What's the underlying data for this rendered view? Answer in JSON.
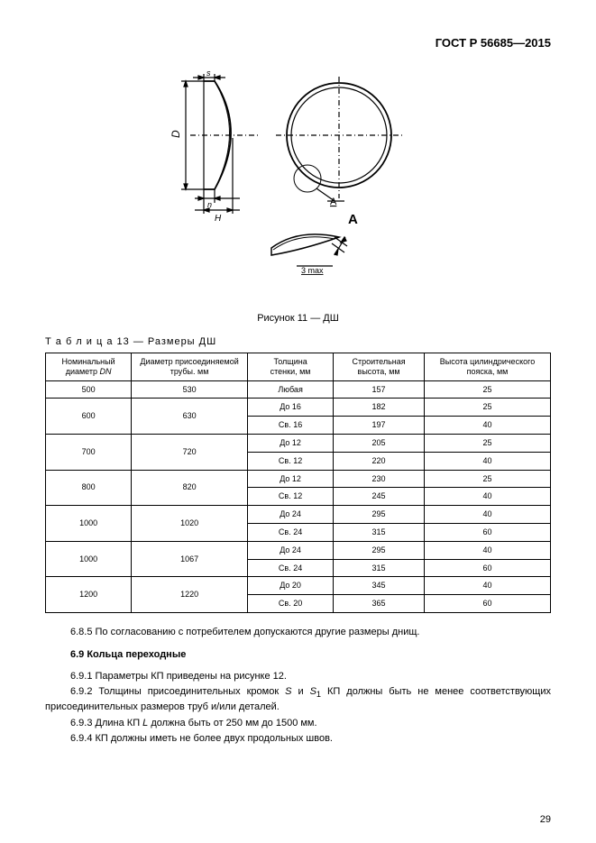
{
  "header": {
    "doc_id": "ГОСТ Р 56685—2015"
  },
  "figure": {
    "caption": "Рисунок 11 — ДШ",
    "labels": {
      "D": "D",
      "s": "s",
      "n": "n",
      "H": "H",
      "A_mark": "A",
      "A_big": "A",
      "bottom_note": "3 max"
    },
    "colors": {
      "stroke": "#000000",
      "fill": "#ffffff"
    }
  },
  "table": {
    "title_prefix": "Т а б л и ц а",
    "title_num": "13 — Размеры ДШ",
    "headers": {
      "c1a": "Номинальный",
      "c1b": "диаметр ",
      "c1c": "DN",
      "c2a": "Диаметр присоединяемой",
      "c2b": "трубы. мм",
      "c3a": "Толщина",
      "c3b": "стенки, мм",
      "c4a": "Строительная",
      "c4b": "высота, мм",
      "c5a": "Высота цилиндрического",
      "c5b": "пояска, мм"
    },
    "rows": [
      {
        "dn": "500",
        "pipe": "530",
        "subrows": [
          {
            "thick": "Любая",
            "height": "157",
            "belt": "25"
          }
        ]
      },
      {
        "dn": "600",
        "pipe": "630",
        "subrows": [
          {
            "thick": "До 16",
            "height": "182",
            "belt": "25"
          },
          {
            "thick": "Св. 16",
            "height": "197",
            "belt": "40"
          }
        ]
      },
      {
        "dn": "700",
        "pipe": "720",
        "subrows": [
          {
            "thick": "До 12",
            "height": "205",
            "belt": "25"
          },
          {
            "thick": "Св. 12",
            "height": "220",
            "belt": "40"
          }
        ]
      },
      {
        "dn": "800",
        "pipe": "820",
        "subrows": [
          {
            "thick": "До 12",
            "height": "230",
            "belt": "25"
          },
          {
            "thick": "Св. 12",
            "height": "245",
            "belt": "40"
          }
        ]
      },
      {
        "dn": "1000",
        "pipe": "1020",
        "subrows": [
          {
            "thick": "До 24",
            "height": "295",
            "belt": "40"
          },
          {
            "thick": "Св. 24",
            "height": "315",
            "belt": "60"
          }
        ]
      },
      {
        "dn": "1000",
        "pipe": "1067",
        "subrows": [
          {
            "thick": "До 24",
            "height": "295",
            "belt": "40"
          },
          {
            "thick": "Св. 24",
            "height": "315",
            "belt": "60"
          }
        ]
      },
      {
        "dn": "1200",
        "pipe": "1220",
        "subrows": [
          {
            "thick": "До 20",
            "height": "345",
            "belt": "40"
          },
          {
            "thick": "Св. 20",
            "height": "365",
            "belt": "60"
          }
        ]
      }
    ]
  },
  "body": {
    "p1": "6.8.5 По согласованию с потребителем допускаются другие размеры днищ.",
    "h69": "6.9 Кольца переходные",
    "p691": "6.9.1 Параметры КП приведены на рисунке 12.",
    "p692a": "6.9.2 Толщины присоединительных кромок ",
    "p692_s": "S",
    "p692_mid": " и ",
    "p692_s1": "S",
    "p692_sub1": "1",
    "p692b": " КП должны быть не менее соответствующих присоединительных размеров труб и/или деталей.",
    "p693a": "6.9.3 Длина КП ",
    "p693_L": "L",
    "p693b": " должна быть от 250 мм до 1500 мм.",
    "p694": "6.9.4 КП должны иметь не более двух продольных швов."
  },
  "page_number": "29"
}
